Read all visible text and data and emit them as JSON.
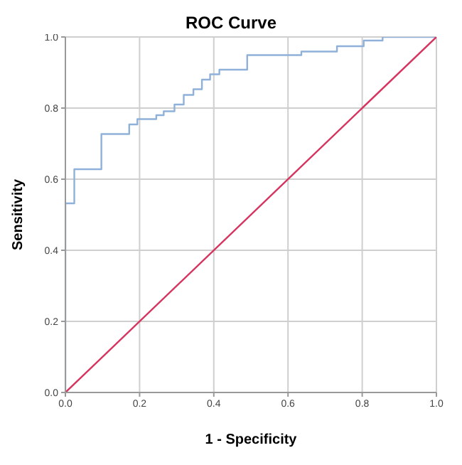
{
  "chart_data": {
    "type": "step",
    "title": "ROC Curve",
    "xlabel": "1 - Specificity",
    "ylabel": "Sensitivity",
    "series": [
      {
        "color": "#8fb1d9",
        "x": [
          0,
          0,
          0.024,
          0.097,
          0.172,
          0.194,
          0.245,
          0.265,
          0.294,
          0.319,
          0.345,
          0.368,
          0.39,
          0.415,
          0.49,
          0.636,
          0.732,
          0.804,
          0.855,
          1
        ],
        "values": [
          0,
          0.532,
          0.628,
          0.727,
          0.754,
          0.769,
          0.78,
          0.791,
          0.81,
          0.837,
          0.853,
          0.88,
          0.895,
          0.908,
          0.949,
          0.959,
          0.974,
          0.99,
          1,
          1
        ]
      },
      {
        "type": "line",
        "color": "#d6345f",
        "x": [
          0,
          1
        ],
        "values": [
          0,
          1
        ]
      }
    ],
    "xlim": [
      0,
      1
    ],
    "ylim": [
      0,
      1
    ],
    "xticks": [
      {
        "value": 0,
        "label": "0.0"
      },
      0.2,
      0.4,
      0.6,
      0.8,
      {
        "value": 1,
        "label": "1.0"
      }
    ],
    "yticks": [
      {
        "value": 0,
        "label": "0.0"
      },
      0.2,
      0.4,
      0.6,
      0.8,
      {
        "value": 1,
        "label": "1.0"
      }
    ],
    "grid": true,
    "marker": "none"
  }
}
